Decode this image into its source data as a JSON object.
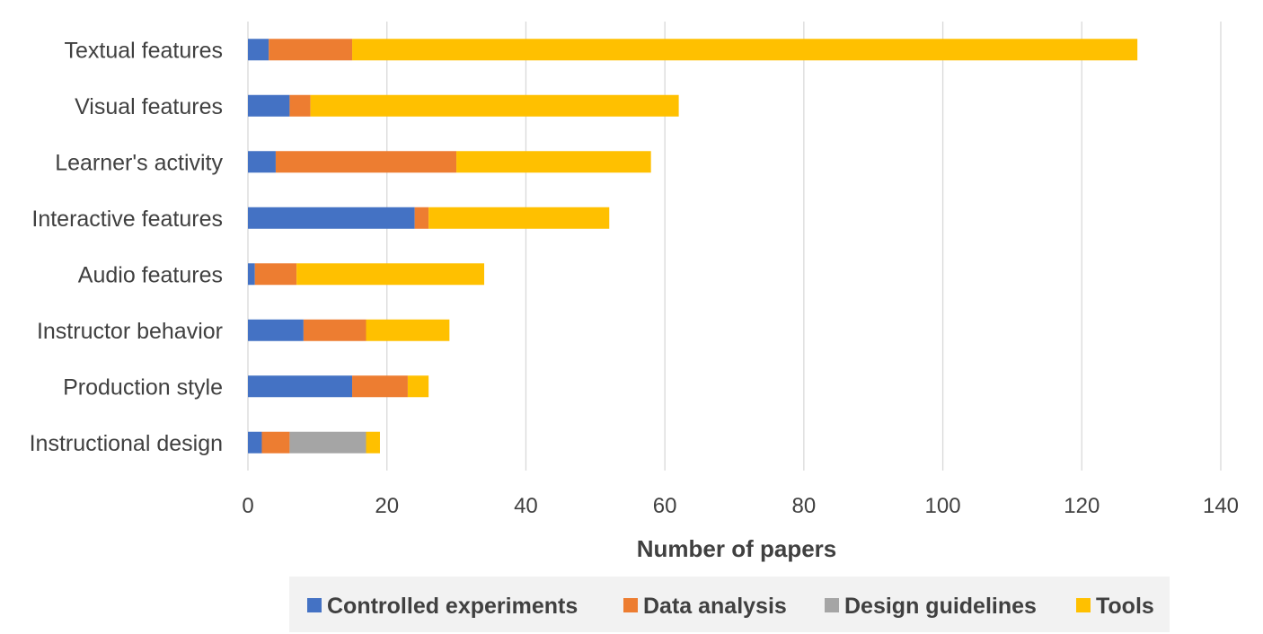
{
  "chart_data": {
    "type": "bar",
    "orientation": "horizontal",
    "stacked": true,
    "categories": [
      "Textual features",
      "Visual features",
      "Learner's activity",
      "Interactive features",
      "Audio features",
      "Instructor behavior",
      "Production style",
      "Instructional design"
    ],
    "series": [
      {
        "name": "Controlled experiments",
        "color": "#4472c4",
        "values": [
          3,
          6,
          4,
          24,
          1,
          8,
          15,
          2
        ]
      },
      {
        "name": "Data analysis",
        "color": "#ed7d31",
        "values": [
          12,
          3,
          26,
          2,
          6,
          9,
          8,
          4
        ]
      },
      {
        "name": "Design guidelines",
        "color": "#a5a5a5",
        "values": [
          0,
          0,
          0,
          0,
          0,
          0,
          0,
          11
        ]
      },
      {
        "name": "Tools",
        "color": "#ffc000",
        "values": [
          113,
          53,
          28,
          26,
          27,
          12,
          3,
          2
        ]
      }
    ],
    "xlabel": "Number of papers",
    "ylabel": "",
    "xlim": [
      0,
      140
    ],
    "xticks": [
      0,
      20,
      40,
      60,
      80,
      100,
      120,
      140
    ],
    "grid": "vertical",
    "legend_position": "bottom"
  }
}
